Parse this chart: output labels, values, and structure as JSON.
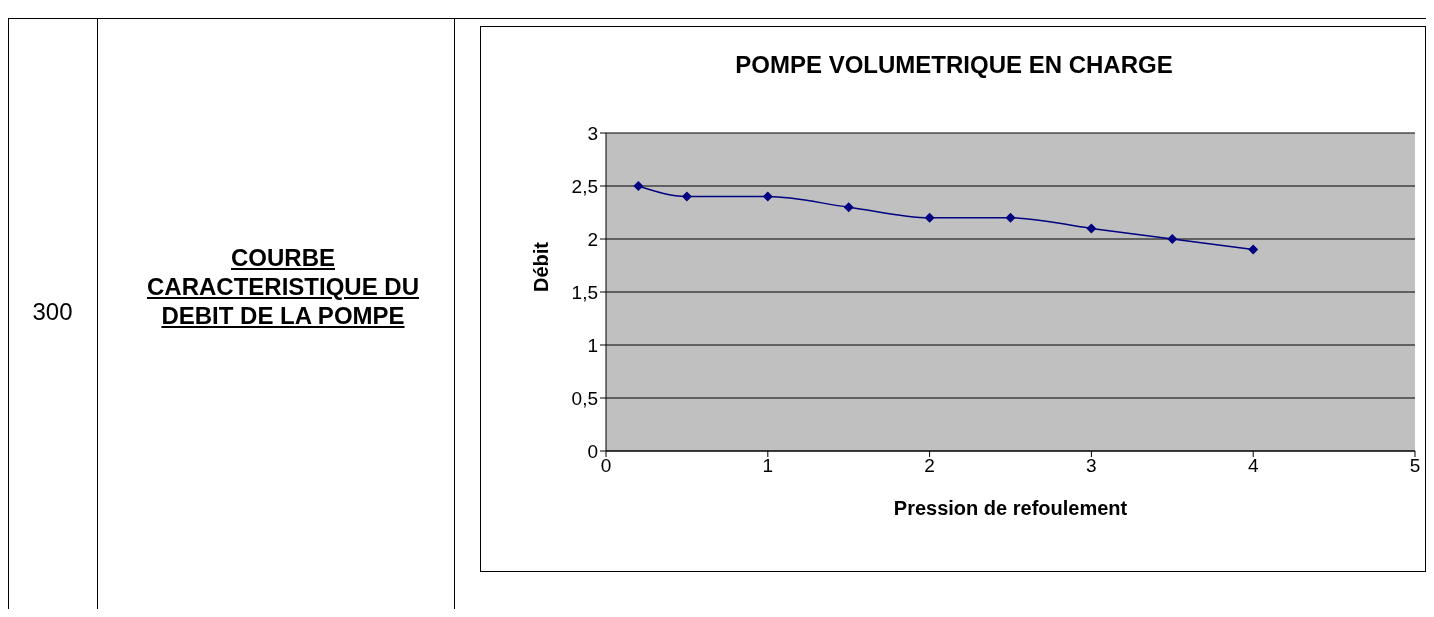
{
  "chart_data": {
    "type": "line",
    "title": "POMPE VOLUMETRIQUE EN CHARGE",
    "xlabel": "Pression de refoulement",
    "ylabel": "Débit",
    "annotations": [
      "300",
      "COURBE CARACTERISTIQUE DU DEBIT DE LA POMPE"
    ],
    "x": [
      0.2,
      0.5,
      1,
      1.5,
      2,
      2.5,
      3,
      3.5,
      4
    ],
    "series": [
      {
        "color": "#000080",
        "values": [
          2.5,
          2.4,
          2.4,
          2.3,
          2.2,
          2.2,
          2.1,
          2.0,
          1.9
        ]
      }
    ],
    "xlim": [
      0,
      5
    ],
    "xticks": [
      0,
      1,
      2,
      3,
      4,
      5
    ],
    "ylim": [
      0,
      3
    ],
    "yticks": [
      0,
      {
        "value": 0.5,
        "label": "0,5"
      },
      1,
      {
        "value": 1.5,
        "label": "1,5"
      },
      2,
      {
        "value": 2.5,
        "label": "2,5"
      },
      3
    ],
    "grid": "y",
    "legend": false,
    "marker": "diamond",
    "line_style": "solid"
  }
}
